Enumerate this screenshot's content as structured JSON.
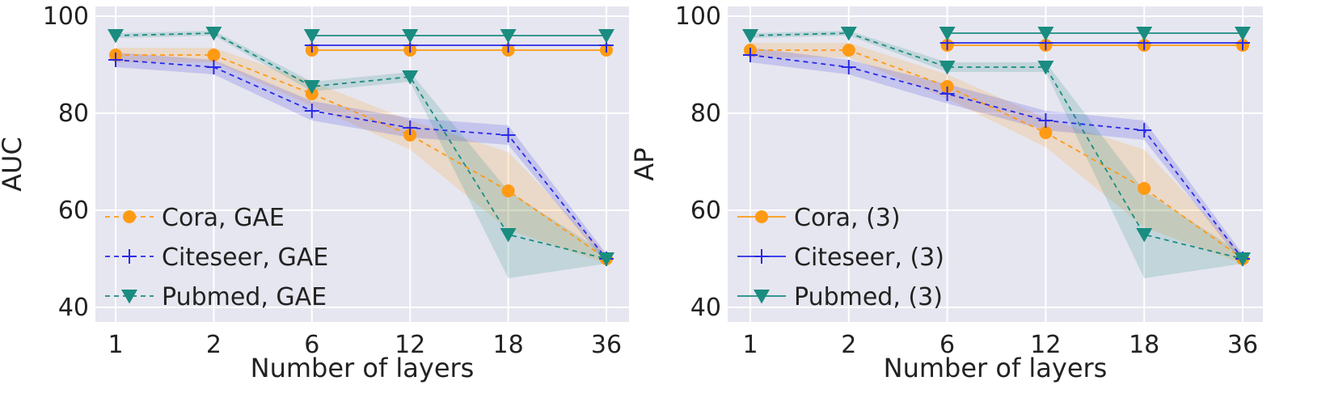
{
  "chart_data": [
    {
      "type": "line",
      "xlabel": "Number of layers",
      "ylabel": "AUC",
      "categories": [
        "1",
        "2",
        "6",
        "12",
        "18",
        "36"
      ],
      "ylim": [
        37,
        102
      ],
      "yticks": [
        "40",
        "60",
        "80",
        "100"
      ],
      "grid": true,
      "legend_location": "lower-left",
      "series": [
        {
          "name": "Cora, GAE",
          "style": "dashed",
          "marker": "circle",
          "color": "#ff9a14",
          "values": [
            92,
            92,
            84,
            75.5,
            64,
            50
          ],
          "band": [
            1.5,
            1.5,
            2.5,
            3,
            8,
            1
          ]
        },
        {
          "name": "Citeseer, GAE",
          "style": "dashed",
          "marker": "plus",
          "color": "#2a2ae6",
          "values": [
            91,
            89.5,
            80.5,
            77,
            75.5,
            50
          ],
          "band": [
            1.5,
            1.5,
            2,
            2,
            2,
            1
          ]
        },
        {
          "name": "Pubmed, GAE",
          "style": "dashed",
          "marker": "triangle",
          "color": "#1a8c80",
          "values": [
            96,
            96.5,
            85.5,
            87.5,
            55,
            50
          ],
          "band": [
            0.5,
            0.5,
            1,
            1,
            9,
            1
          ]
        },
        {
          "name": "Cora, (3)",
          "style": "solid",
          "marker": "circle",
          "color": "#ff9a14",
          "legend": false,
          "values": [
            null,
            null,
            93,
            93,
            93,
            93
          ]
        },
        {
          "name": "Citeseer, (3)",
          "style": "solid",
          "marker": "plus",
          "color": "#2a2ae6",
          "legend": false,
          "values": [
            null,
            null,
            94,
            94,
            94,
            94
          ]
        },
        {
          "name": "Pubmed, (3)",
          "style": "solid",
          "marker": "triangle",
          "color": "#1a8c80",
          "legend": false,
          "values": [
            null,
            null,
            96,
            96,
            96,
            96
          ]
        }
      ]
    },
    {
      "type": "line",
      "xlabel": "Number of layers",
      "ylabel": "AP",
      "categories": [
        "1",
        "2",
        "6",
        "12",
        "18",
        "36"
      ],
      "ylim": [
        37,
        102
      ],
      "yticks": [
        "40",
        "60",
        "80",
        "100"
      ],
      "grid": true,
      "legend_location": "lower-left",
      "series": [
        {
          "name": "Cora, GAE",
          "style": "dashed",
          "marker": "circle",
          "color": "#ff9a14",
          "legend": false,
          "values": [
            93,
            93,
            85.5,
            76,
            64.5,
            50
          ],
          "band": [
            1.5,
            1.5,
            2.5,
            3,
            8,
            1
          ]
        },
        {
          "name": "Citeseer, GAE",
          "style": "dashed",
          "marker": "plus",
          "color": "#2a2ae6",
          "legend": false,
          "values": [
            92,
            89.5,
            84,
            78.5,
            76.5,
            50
          ],
          "band": [
            1.5,
            1.5,
            2,
            2,
            2,
            1
          ]
        },
        {
          "name": "Pubmed, GAE",
          "style": "dashed",
          "marker": "triangle",
          "color": "#1a8c80",
          "legend": false,
          "values": [
            96,
            96.5,
            89.5,
            89.5,
            55,
            50
          ],
          "band": [
            0.5,
            0.5,
            1,
            1,
            9,
            1
          ]
        },
        {
          "name": "Cora, (3)",
          "style": "solid",
          "marker": "circle",
          "color": "#ff9a14",
          "values": [
            null,
            null,
            94,
            94,
            94,
            94
          ]
        },
        {
          "name": "Citeseer, (3)",
          "style": "solid",
          "marker": "plus",
          "color": "#2a2ae6",
          "values": [
            null,
            null,
            94.5,
            94.5,
            94.5,
            94.5
          ]
        },
        {
          "name": "Pubmed, (3)",
          "style": "solid",
          "marker": "triangle",
          "color": "#1a8c80",
          "values": [
            null,
            null,
            96.5,
            96.5,
            96.5,
            96.5
          ]
        }
      ]
    }
  ]
}
